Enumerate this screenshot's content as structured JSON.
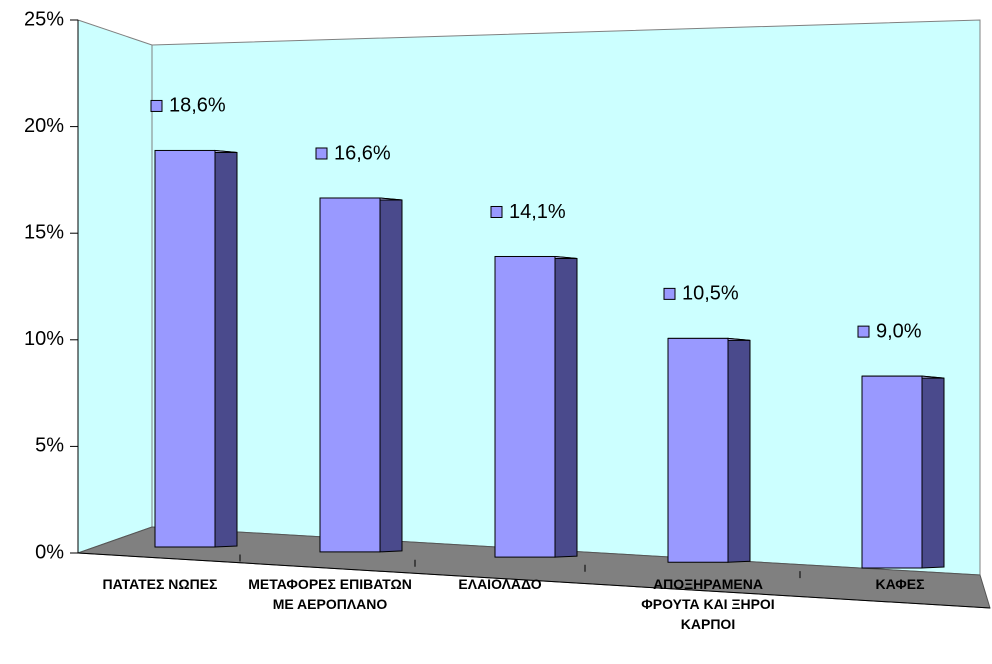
{
  "chart_data": {
    "type": "bar3d",
    "categories": [
      "ΠΑΤΑΤΕΣ ΝΩΠΕΣ",
      "ΜΕΤΑΦΟΡΕΣ ΕΠΙΒΑΤΩΝ ΜΕ ΑΕΡΟΠΛΑΝΟ",
      "ΕΛΑΙΟΛΑΔΟ",
      "ΑΠΟΞΗΡΑΜΕΝΑ ΦΡΟΥΤΑ ΚΑΙ ΞΗΡΟΙ ΚΑΡΠΟΙ",
      "ΚΑΦΕΣ"
    ],
    "values": [
      18.6,
      16.6,
      14.1,
      10.5,
      9.0
    ],
    "value_labels": [
      "18,6%",
      "16,6%",
      "14,1%",
      "10,5%",
      "9,0%"
    ],
    "color": "#9999ff",
    "ylim": [
      0,
      25
    ],
    "yticks": [
      {
        "value": 0,
        "label": "0%"
      },
      {
        "value": 5,
        "label": "5%"
      },
      {
        "value": 10,
        "label": "10%"
      },
      {
        "value": 15,
        "label": "15%"
      },
      {
        "value": 20,
        "label": "20%"
      },
      {
        "value": 25,
        "label": "25%"
      }
    ],
    "grid": false
  }
}
